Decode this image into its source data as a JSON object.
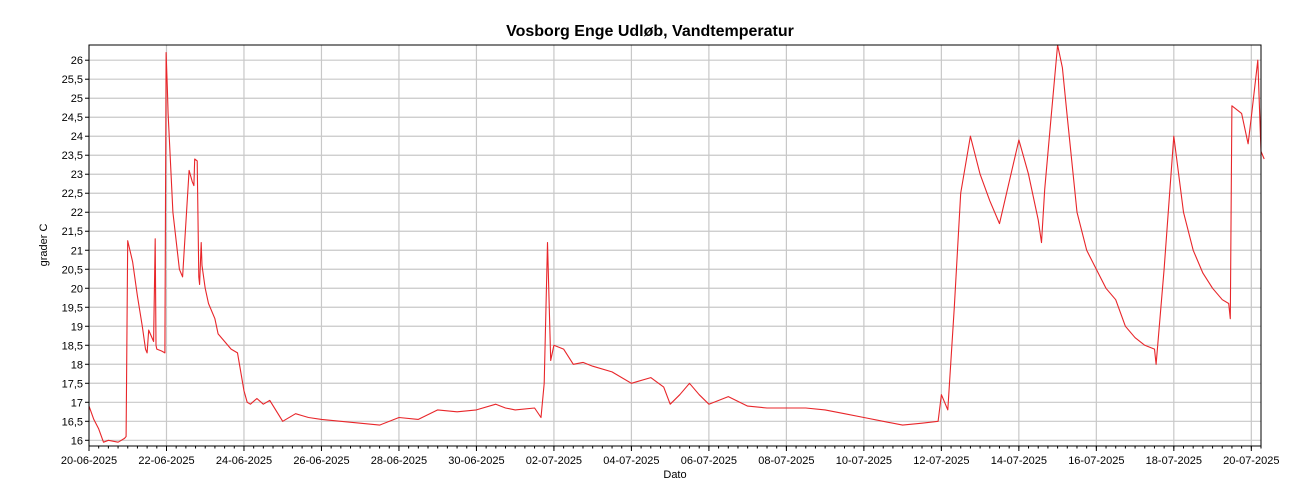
{
  "chart_data": {
    "type": "line",
    "title": "Vosborg Enge Udløb, Vandtemperatur",
    "xlabel": "Dato",
    "ylabel": "grader C",
    "xlim": [
      "2025-06-20",
      "2025-07-20 06:00"
    ],
    "ylim": [
      15.85,
      26.4
    ],
    "grid": true,
    "x_ticks": [
      "20-06-2025",
      "22-06-2025",
      "24-06-2025",
      "26-06-2025",
      "28-06-2025",
      "30-06-2025",
      "02-07-2025",
      "04-07-2025",
      "06-07-2025",
      "08-07-2025",
      "10-07-2025",
      "12-07-2025",
      "14-07-2025",
      "16-07-2025",
      "18-07-2025",
      "20-07-2025"
    ],
    "y_ticks": [
      {
        "value": 16,
        "label": "16"
      },
      {
        "value": 16.5,
        "label": "16,5"
      },
      {
        "value": 17,
        "label": "17"
      },
      {
        "value": 17.5,
        "label": "17,5"
      },
      {
        "value": 18,
        "label": "18"
      },
      {
        "value": 18.5,
        "label": "18,5"
      },
      {
        "value": 19,
        "label": "19"
      },
      {
        "value": 19.5,
        "label": "19,5"
      },
      {
        "value": 20,
        "label": "20"
      },
      {
        "value": 20.5,
        "label": "20,5"
      },
      {
        "value": 21,
        "label": "21"
      },
      {
        "value": 21.5,
        "label": "21,5"
      },
      {
        "value": 22,
        "label": "22"
      },
      {
        "value": 22.5,
        "label": "22,5"
      },
      {
        "value": 23,
        "label": "23"
      },
      {
        "value": 23.5,
        "label": "23,5"
      },
      {
        "value": 24,
        "label": "24"
      },
      {
        "value": 24.5,
        "label": "24,5"
      },
      {
        "value": 25,
        "label": "25"
      },
      {
        "value": 25.5,
        "label": "25,5"
      },
      {
        "value": 26,
        "label": "26"
      }
    ],
    "series_color": "#e8262a",
    "series": [
      {
        "x": [
          "2025-06-20 00:00",
          "2025-06-20 03:00",
          "2025-06-20 06:00",
          "2025-06-20 09:00",
          "2025-06-20 12:00",
          "2025-06-20 18:00",
          "2025-06-20 22:00",
          "2025-06-20 23:00",
          "2025-06-21 00:00",
          "2025-06-21 03:00",
          "2025-06-21 06:00",
          "2025-06-21 09:00",
          "2025-06-21 11:00",
          "2025-06-21 12:00",
          "2025-06-21 13:00",
          "2025-06-21 16:00",
          "2025-06-21 17:00",
          "2025-06-21 17:30",
          "2025-06-21 18:00",
          "2025-06-21 21:00",
          "2025-06-21 23:00",
          "2025-06-21 23:45",
          "2025-06-22 00:30",
          "2025-06-22 01:00",
          "2025-06-22 04:00",
          "2025-06-22 08:00",
          "2025-06-22 10:00",
          "2025-06-22 11:00",
          "2025-06-22 14:00",
          "2025-06-22 16:00",
          "2025-06-22 17:00",
          "2025-06-22 17:30",
          "2025-06-22 19:00",
          "2025-06-22 20:00",
          "2025-06-22 20:30",
          "2025-06-22 21:30",
          "2025-06-22 22:00",
          "2025-06-23 00:00",
          "2025-06-23 02:00",
          "2025-06-23 06:00",
          "2025-06-23 08:00",
          "2025-06-23 12:00",
          "2025-06-23 16:00",
          "2025-06-23 20:00",
          "2025-06-24 00:00",
          "2025-06-24 02:00",
          "2025-06-24 04:00",
          "2025-06-24 08:00",
          "2025-06-24 12:00",
          "2025-06-24 16:00",
          "2025-06-25 00:00",
          "2025-06-25 08:00",
          "2025-06-25 12:00",
          "2025-06-25 16:00",
          "2025-06-26 00:00",
          "2025-06-26 12:00",
          "2025-06-27 00:00",
          "2025-06-27 12:00",
          "2025-06-28 00:00",
          "2025-06-28 12:00",
          "2025-06-29 00:00",
          "2025-06-29 12:00",
          "2025-06-30 00:00",
          "2025-06-30 12:00",
          "2025-06-30 18:00",
          "2025-07-01 00:00",
          "2025-07-01 12:00",
          "2025-07-01 16:00",
          "2025-07-01 18:00",
          "2025-07-01 20:00",
          "2025-07-01 22:00",
          "2025-07-02 00:00",
          "2025-07-02 06:00",
          "2025-07-02 12:00",
          "2025-07-02 18:00",
          "2025-07-03 00:00",
          "2025-07-03 12:00",
          "2025-07-04 00:00",
          "2025-07-04 12:00",
          "2025-07-04 20:00",
          "2025-07-05 00:00",
          "2025-07-05 06:00",
          "2025-07-05 12:00",
          "2025-07-05 18:00",
          "2025-07-06 00:00",
          "2025-07-06 12:00",
          "2025-07-07 00:00",
          "2025-07-07 12:00",
          "2025-07-08 00:00",
          "2025-07-08 12:00",
          "2025-07-09 00:00",
          "2025-07-09 12:00",
          "2025-07-10 00:00",
          "2025-07-10 12:00",
          "2025-07-11 00:00",
          "2025-07-11 12:00",
          "2025-07-11 22:00",
          "2025-07-12 00:00",
          "2025-07-12 04:00",
          "2025-07-12 08:00",
          "2025-07-12 12:00",
          "2025-07-12 18:00",
          "2025-07-13 00:00",
          "2025-07-13 06:00",
          "2025-07-13 12:00",
          "2025-07-13 18:00",
          "2025-07-14 00:00",
          "2025-07-14 06:00",
          "2025-07-14 12:00",
          "2025-07-14 14:00",
          "2025-07-14 16:00",
          "2025-07-14 20:00",
          "2025-07-15 00:00",
          "2025-07-15 03:00",
          "2025-07-15 06:00",
          "2025-07-15 12:00",
          "2025-07-15 18:00",
          "2025-07-16 00:00",
          "2025-07-16 06:00",
          "2025-07-16 12:00",
          "2025-07-16 18:00",
          "2025-07-17 00:00",
          "2025-07-17 06:00",
          "2025-07-17 12:00",
          "2025-07-17 13:00",
          "2025-07-17 18:00",
          "2025-07-18 00:00",
          "2025-07-18 06:00",
          "2025-07-18 12:00",
          "2025-07-18 18:00",
          "2025-07-19 00:00",
          "2025-07-19 06:00",
          "2025-07-19 10:00",
          "2025-07-19 11:00",
          "2025-07-19 12:00",
          "2025-07-19 18:00",
          "2025-07-19 22:00",
          "2025-07-20 00:00",
          "2025-07-20 04:00",
          "2025-07-20 06:00",
          "2025-07-20 08:00"
        ],
        "y": [
          16.9,
          16.55,
          16.3,
          15.95,
          16.0,
          15.95,
          16.05,
          16.1,
          21.25,
          20.7,
          19.8,
          19.0,
          18.4,
          18.3,
          18.9,
          18.6,
          21.3,
          18.5,
          18.4,
          18.35,
          18.3,
          26.2,
          25.3,
          24.6,
          22.0,
          20.5,
          20.3,
          21.0,
          23.1,
          22.8,
          22.7,
          23.4,
          23.35,
          20.3,
          20.1,
          21.2,
          20.6,
          20.0,
          19.6,
          19.2,
          18.8,
          18.6,
          18.4,
          18.3,
          17.3,
          17.0,
          16.95,
          17.1,
          16.95,
          17.05,
          16.5,
          16.7,
          16.65,
          16.6,
          16.55,
          16.5,
          16.45,
          16.4,
          16.6,
          16.55,
          16.8,
          16.75,
          16.8,
          16.95,
          16.85,
          16.8,
          16.85,
          16.6,
          17.5,
          21.2,
          18.1,
          18.5,
          18.4,
          18.0,
          18.05,
          17.95,
          17.8,
          17.5,
          17.65,
          17.4,
          16.95,
          17.2,
          17.5,
          17.2,
          16.95,
          17.15,
          16.9,
          16.85,
          16.85,
          16.85,
          16.8,
          16.7,
          16.6,
          16.5,
          16.4,
          16.45,
          16.5,
          17.2,
          16.8,
          19.5,
          22.5,
          24.0,
          23.0,
          22.3,
          21.7,
          22.8,
          23.9,
          23.0,
          21.8,
          21.2,
          22.6,
          24.5,
          26.4,
          25.8,
          24.5,
          22.0,
          21.0,
          20.5,
          20.0,
          19.7,
          19.0,
          18.7,
          18.5,
          18.4,
          18.0,
          20.5,
          24.0,
          22.0,
          21.0,
          20.4,
          20.0,
          19.7,
          19.6,
          19.2,
          24.8,
          24.6,
          23.8,
          24.5,
          26.0,
          23.6,
          23.4
        ]
      }
    ]
  }
}
